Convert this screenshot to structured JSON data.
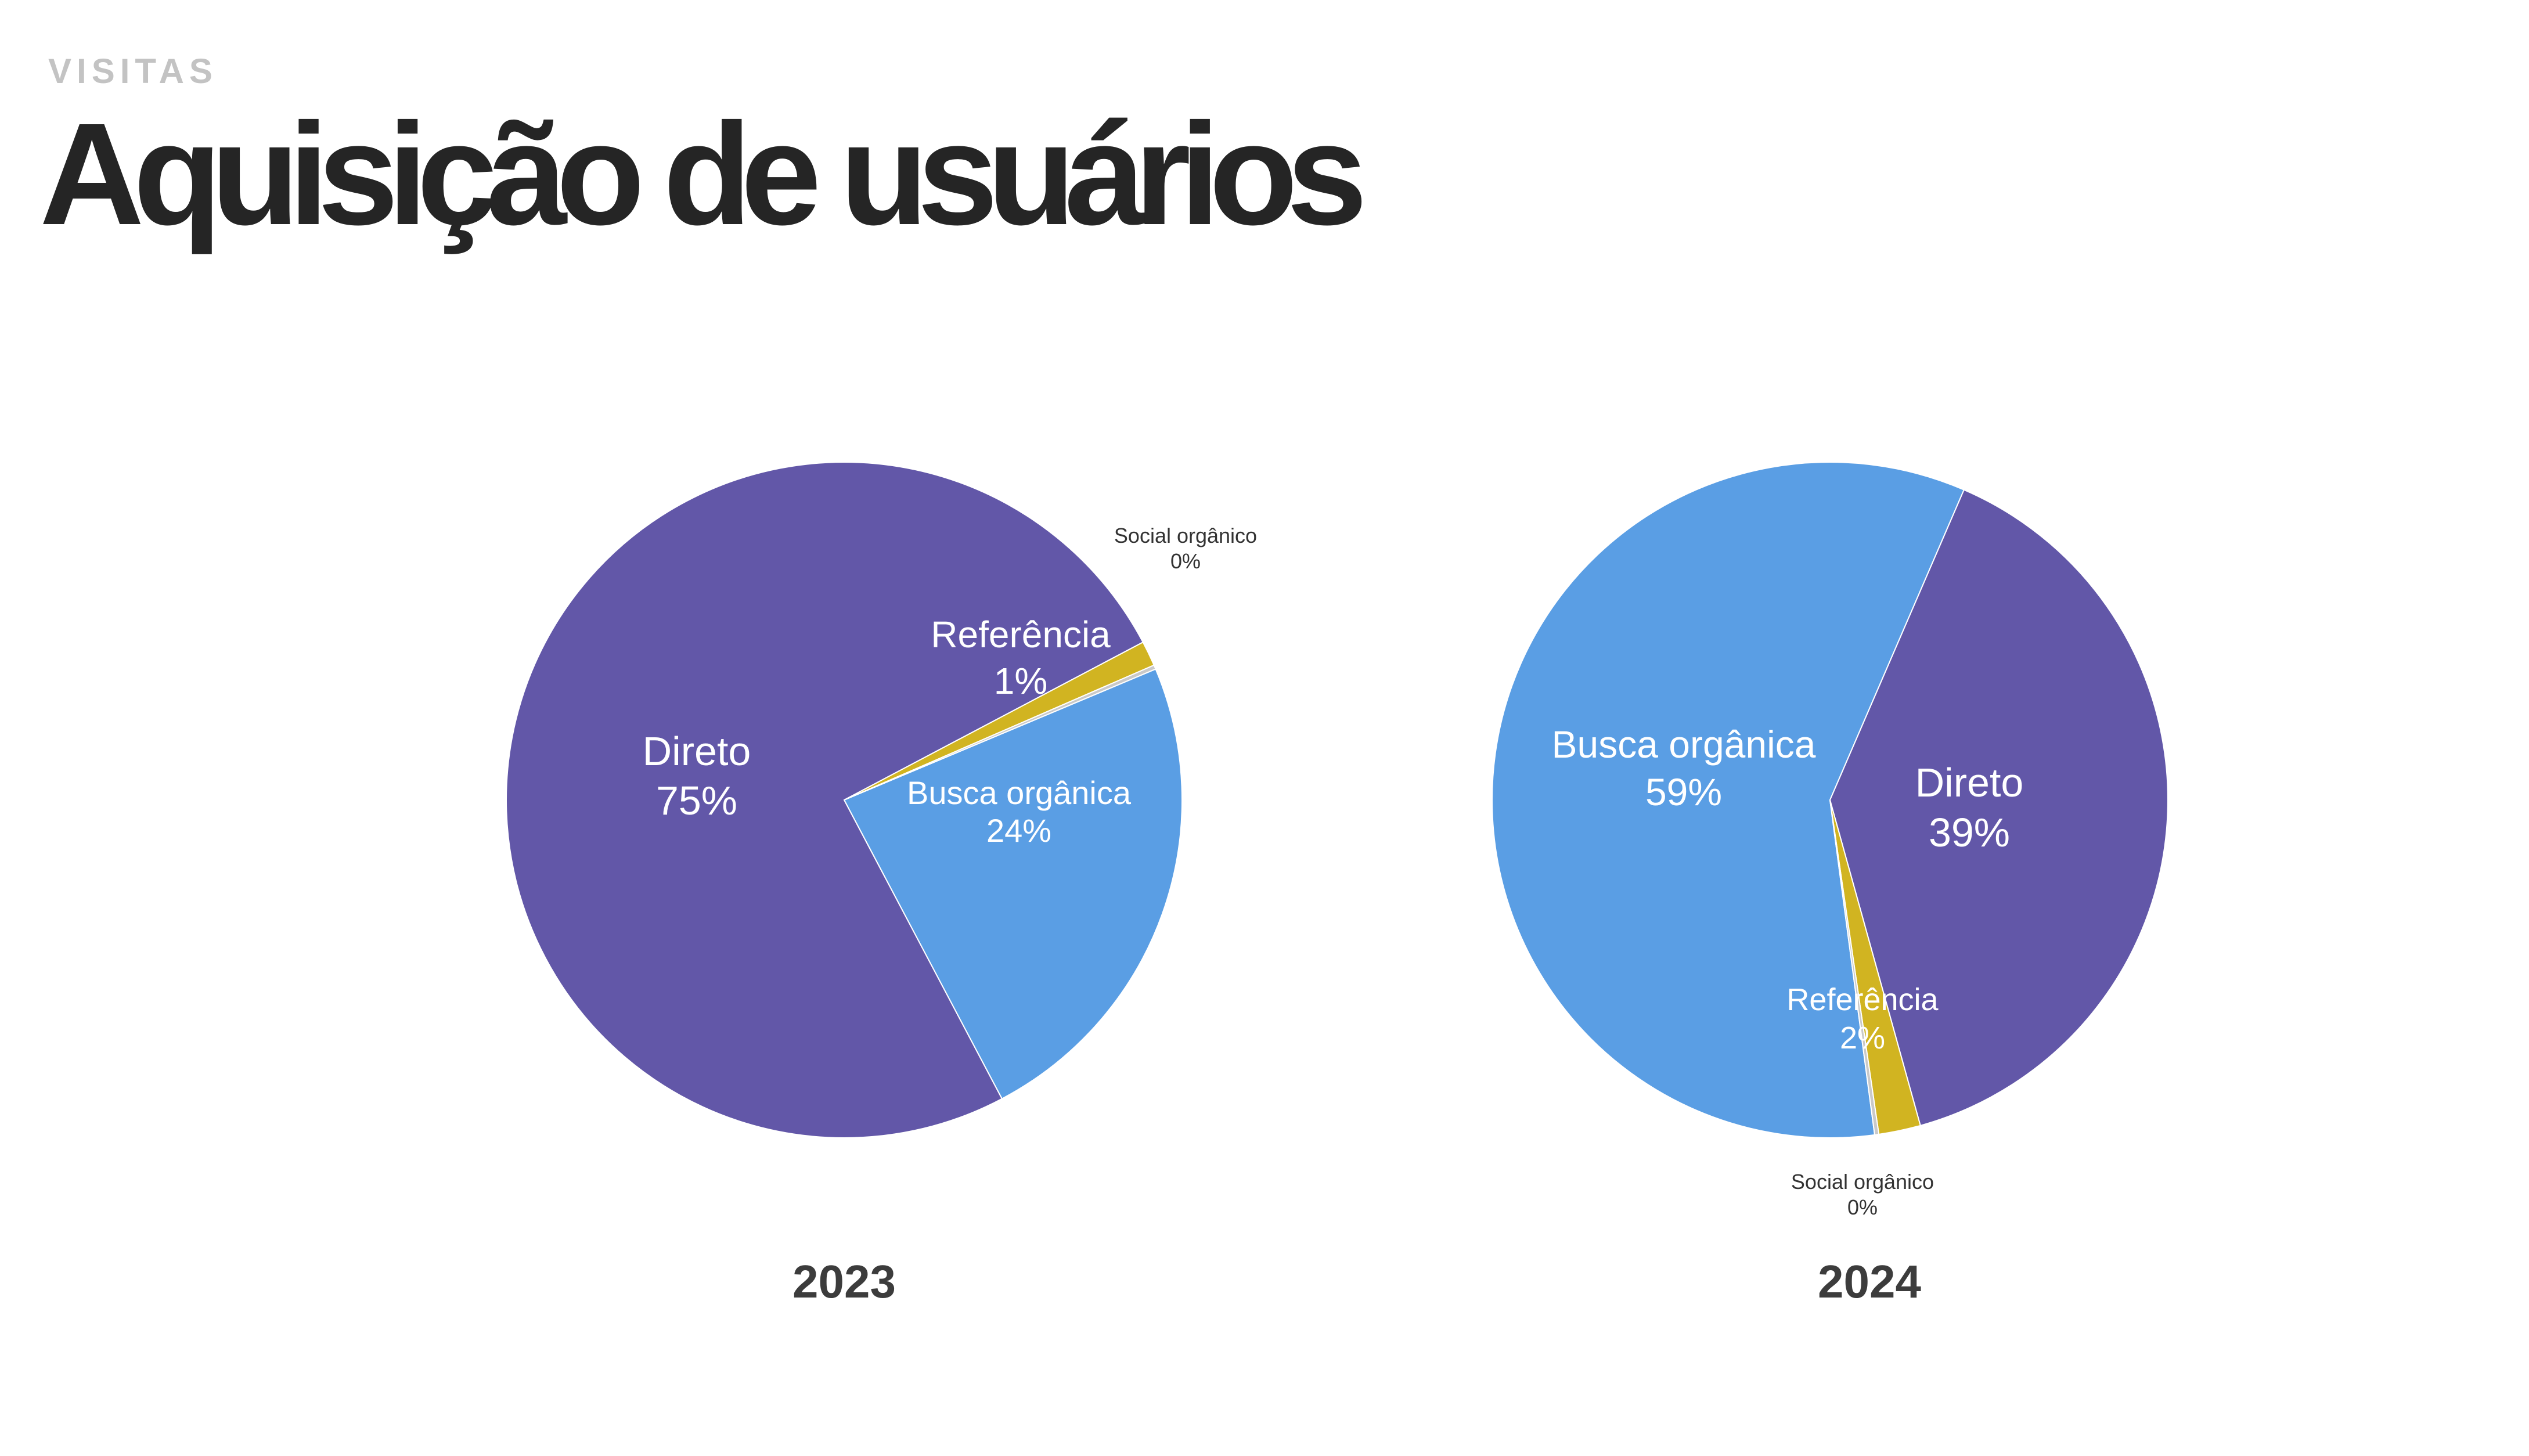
{
  "header": {
    "eyebrow": "VISITAS",
    "title": "Aquisição de usuários"
  },
  "colors": {
    "direto": "#6257a8",
    "busca_organica": "#5a9ee4",
    "referencia": "#d1b421",
    "social_organico": "#c9c9c9"
  },
  "chart_data": [
    {
      "type": "pie",
      "title": "2023",
      "slices": [
        {
          "label": "Direto",
          "percent_label": "75%",
          "value": 75.0,
          "color": "#6257a8"
        },
        {
          "label": "Busca orgânica",
          "percent_label": "24%",
          "value": 23.6,
          "color": "#5a9ee4"
        },
        {
          "label": "Referência",
          "percent_label": "1%",
          "value": 1.2,
          "color": "#d1b421"
        },
        {
          "label": "Social orgânico",
          "percent_label": "0%",
          "value": 0.2,
          "color": "#c9c9c9"
        }
      ]
    },
    {
      "type": "pie",
      "title": "2024",
      "slices": [
        {
          "label": "Direto",
          "percent_label": "39%",
          "value": 39.2,
          "color": "#6257a8"
        },
        {
          "label": "Busca orgânica",
          "percent_label": "59%",
          "value": 58.6,
          "color": "#5a9ee4"
        },
        {
          "label": "Referência",
          "percent_label": "2%",
          "value": 2.0,
          "color": "#d1b421"
        },
        {
          "label": "Social orgânico",
          "percent_label": "0%",
          "value": 0.2,
          "color": "#c9c9c9"
        }
      ]
    }
  ]
}
